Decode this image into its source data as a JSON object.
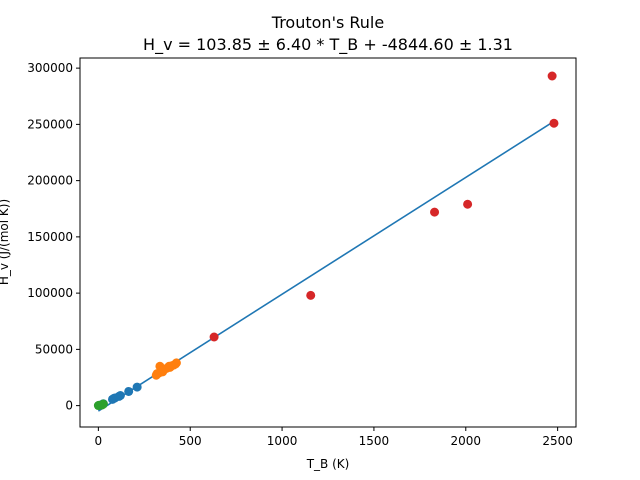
{
  "chart_data": {
    "type": "scatter",
    "title": "Trouton's Rule",
    "subtitle": "H_v = 103.85 ± 6.40 * T_B + -4844.60 ± 1.31",
    "xlabel": "T_B (K)",
    "ylabel": "H_v (J/(mol K))",
    "xlim": [
      -100,
      2600
    ],
    "ylim": [
      -19000,
      309000
    ],
    "x_ticks": [
      0,
      500,
      1000,
      1500,
      2000,
      2500
    ],
    "x_tick_labels": [
      "0",
      "500",
      "1000",
      "1500",
      "2000",
      "2500"
    ],
    "y_ticks": [
      0,
      50000,
      100000,
      150000,
      200000,
      250000,
      300000
    ],
    "y_tick_labels": [
      "0",
      "50000",
      "100000",
      "150000",
      "200000",
      "250000",
      "300000"
    ],
    "grid": false,
    "series": [
      {
        "color": "#1f77b4",
        "points": [
          [
            10,
            300
          ],
          [
            20,
            900
          ],
          [
            27,
            1700
          ],
          [
            77,
            5600
          ],
          [
            85,
            6500
          ],
          [
            90,
            6800
          ],
          [
            112,
            8200
          ],
          [
            120,
            9000
          ],
          [
            165,
            12600
          ],
          [
            211,
            16500
          ]
        ]
      },
      {
        "color": "#ff7f0e",
        "points": [
          [
            315,
            27000
          ],
          [
            320,
            28500
          ],
          [
            330,
            29000
          ],
          [
            335,
            35000
          ],
          [
            340,
            31000
          ],
          [
            350,
            30000
          ],
          [
            351,
            31500
          ],
          [
            356,
            32000
          ],
          [
            370,
            33000
          ],
          [
            385,
            35000
          ],
          [
            390,
            34000
          ],
          [
            400,
            35500
          ],
          [
            410,
            36000
          ],
          [
            420,
            37000
          ],
          [
            425,
            38000
          ]
        ]
      },
      {
        "color": "#2ca02c",
        "points": [
          [
            0,
            100
          ],
          [
            4,
            300
          ],
          [
            20,
            600
          ],
          [
            27,
            1400
          ]
        ]
      },
      {
        "color": "#d62728",
        "points": [
          [
            630,
            61000
          ],
          [
            1156,
            98000
          ],
          [
            1830,
            172000
          ],
          [
            2010,
            179000
          ],
          [
            2470,
            293000
          ],
          [
            2480,
            251000
          ]
        ]
      }
    ],
    "fit_line": {
      "color": "#1f77b4",
      "x": [
        0,
        2480
      ],
      "y": [
        -4844.6,
        252703.4
      ]
    }
  }
}
